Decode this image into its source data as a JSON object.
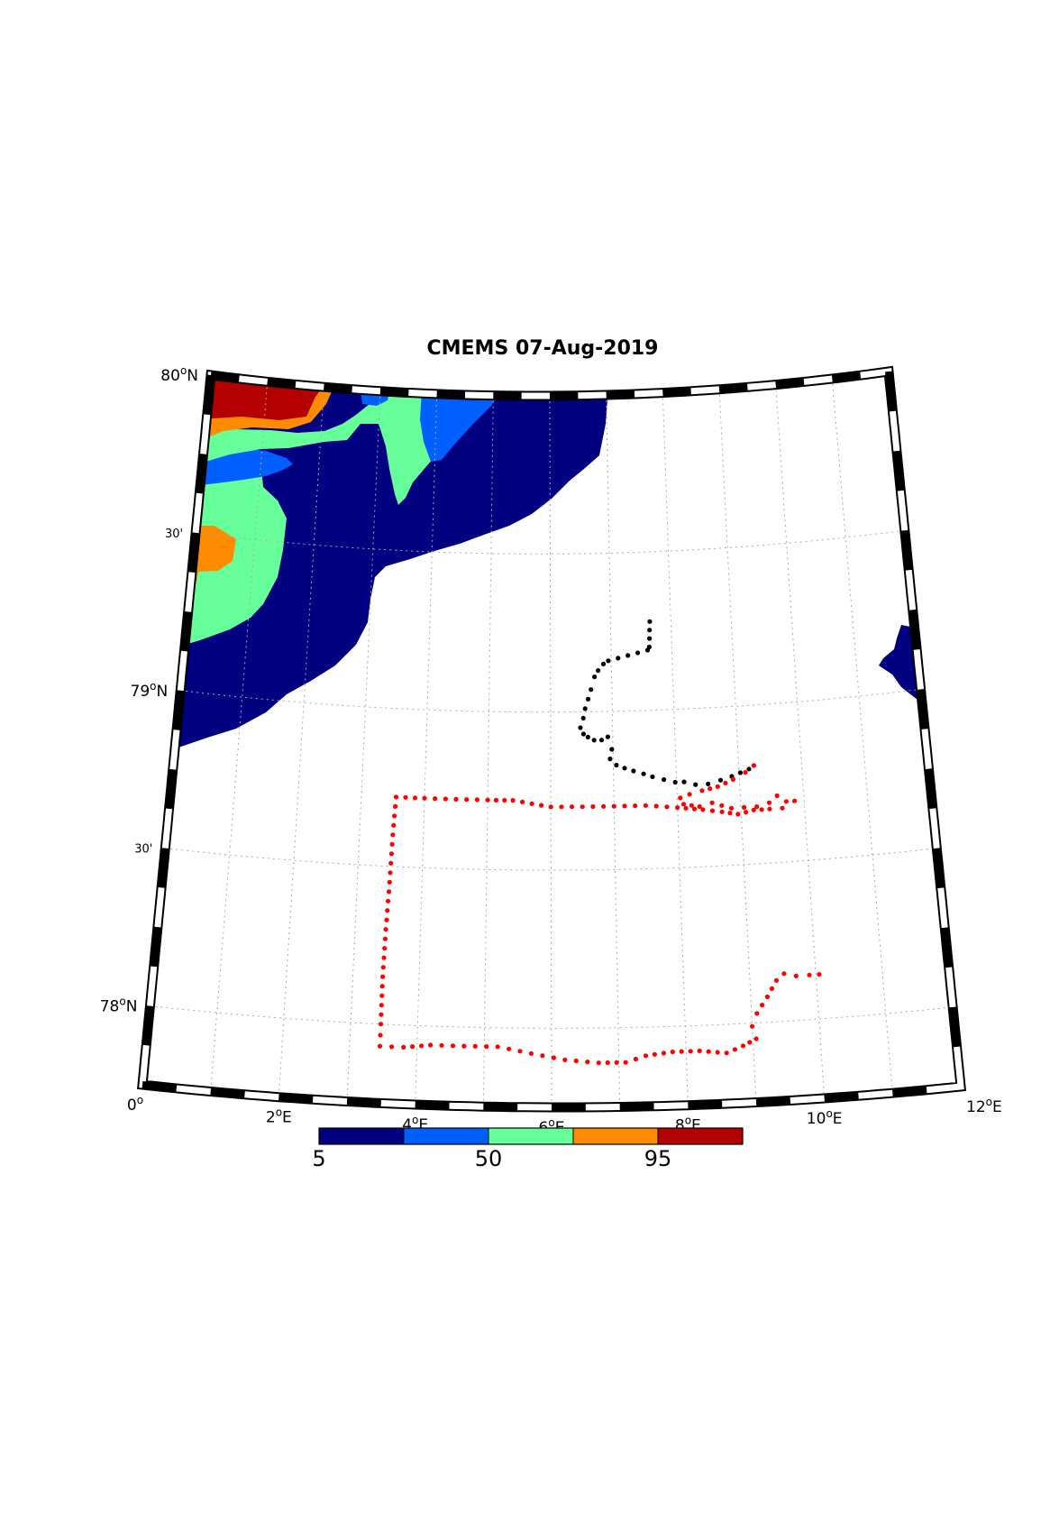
{
  "title": "CMEMS 07-Aug-2019",
  "map": {
    "lon_range": [
      0,
      12
    ],
    "lat_range": [
      77.75,
      80
    ],
    "lat_labels": [
      {
        "lat": 80,
        "text": "80",
        "sup": "o",
        "suffix": "N"
      },
      {
        "lat": 79.5,
        "text": "30'",
        "sup": "",
        "suffix": ""
      },
      {
        "lat": 79,
        "text": "79",
        "sup": "o",
        "suffix": "N"
      },
      {
        "lat": 78.5,
        "text": "30'",
        "sup": "",
        "suffix": ""
      },
      {
        "lat": 78,
        "text": "78",
        "sup": "o",
        "suffix": "N"
      }
    ],
    "lon_labels": [
      {
        "lon": 0,
        "text": "0",
        "sup": "o",
        "suffix": ""
      },
      {
        "lon": 2,
        "text": "2",
        "sup": "o",
        "suffix": "E"
      },
      {
        "lon": 4,
        "text": "4",
        "sup": "o",
        "suffix": "E"
      },
      {
        "lon": 6,
        "text": "6",
        "sup": "o",
        "suffix": "E"
      },
      {
        "lon": 8,
        "text": "8",
        "sup": "o",
        "suffix": "E"
      },
      {
        "lon": 10,
        "text": "10",
        "sup": "o",
        "suffix": "E"
      },
      {
        "lon": 12,
        "text": "12",
        "sup": "o",
        "suffix": "E"
      }
    ],
    "black_track_color": "#000000",
    "red_track_color": "#ff0000",
    "black_track": [
      [
        7.65,
        79.28
      ],
      [
        7.63,
        79.2
      ],
      [
        7.6,
        79.19
      ],
      [
        6.95,
        79.16
      ],
      [
        6.87,
        79.15
      ],
      [
        6.78,
        79.13
      ],
      [
        6.72,
        79.11
      ],
      [
        6.66,
        79.07
      ],
      [
        6.61,
        79.04
      ],
      [
        6.56,
        79.01
      ],
      [
        6.53,
        78.98
      ],
      [
        6.48,
        78.95
      ],
      [
        6.53,
        78.93
      ],
      [
        6.6,
        78.92
      ],
      [
        6.7,
        78.91
      ],
      [
        6.82,
        78.91
      ],
      [
        6.92,
        78.92
      ],
      [
        6.98,
        78.88
      ],
      [
        6.95,
        78.85
      ],
      [
        7.05,
        78.83
      ],
      [
        7.18,
        78.82
      ],
      [
        7.32,
        78.81
      ],
      [
        7.48,
        78.8
      ],
      [
        7.62,
        78.79
      ],
      [
        7.8,
        78.78
      ],
      [
        7.98,
        78.77
      ],
      [
        8.12,
        78.77
      ],
      [
        8.3,
        78.76
      ],
      [
        8.5,
        78.76
      ],
      [
        8.7,
        78.77
      ],
      [
        8.88,
        78.78
      ],
      [
        9.02,
        78.79
      ],
      [
        9.16,
        78.8
      ],
      [
        9.24,
        78.81
      ]
    ],
    "red_track": [
      [
        9.24,
        78.81
      ],
      [
        9.1,
        78.79
      ],
      [
        8.9,
        78.77
      ],
      [
        8.65,
        78.75
      ],
      [
        8.4,
        78.74
      ],
      [
        8.2,
        78.73
      ],
      [
        8.05,
        78.72
      ],
      [
        8.1,
        78.7
      ],
      [
        8.35,
        78.69
      ],
      [
        8.55,
        78.7
      ],
      [
        8.7,
        78.69
      ],
      [
        8.85,
        78.68
      ],
      [
        9.05,
        78.68
      ],
      [
        9.25,
        78.68
      ],
      [
        9.45,
        78.69
      ],
      [
        9.58,
        78.71
      ],
      [
        9.72,
        78.69
      ],
      [
        9.85,
        78.69
      ],
      [
        9.65,
        78.67
      ],
      [
        9.45,
        78.67
      ],
      [
        9.2,
        78.67
      ],
      [
        8.95,
        78.66
      ],
      [
        8.7,
        78.67
      ],
      [
        8.4,
        78.68
      ],
      [
        8.0,
        78.69
      ],
      [
        7.5,
        78.7
      ],
      [
        7.0,
        78.7
      ],
      [
        6.5,
        78.7
      ],
      [
        6.0,
        78.7
      ],
      [
        5.4,
        78.72
      ],
      [
        5.0,
        78.72
      ],
      [
        4.5,
        78.72
      ],
      [
        4.0,
        78.72
      ],
      [
        3.55,
        78.72
      ],
      [
        3.52,
        78.6
      ],
      [
        3.5,
        78.45
      ],
      [
        3.47,
        78.3
      ],
      [
        3.45,
        78.15
      ],
      [
        3.45,
        78.0
      ],
      [
        3.45,
        77.93
      ],
      [
        3.8,
        77.93
      ],
      [
        4.2,
        77.94
      ],
      [
        4.7,
        77.94
      ],
      [
        5.2,
        77.94
      ],
      [
        5.7,
        77.92
      ],
      [
        6.2,
        77.9
      ],
      [
        6.7,
        77.89
      ],
      [
        7.1,
        77.89
      ],
      [
        7.4,
        77.91
      ],
      [
        7.8,
        77.92
      ],
      [
        8.2,
        77.92
      ],
      [
        8.6,
        77.91
      ],
      [
        8.85,
        77.93
      ],
      [
        9.05,
        77.95
      ],
      [
        9.0,
        77.99
      ],
      [
        9.08,
        78.03
      ],
      [
        9.25,
        78.08
      ],
      [
        9.4,
        78.13
      ],
      [
        9.52,
        78.15
      ],
      [
        9.7,
        78.14
      ],
      [
        9.9,
        78.14
      ],
      [
        10.05,
        78.14
      ]
    ]
  },
  "colorbar": {
    "colors": [
      "#000080",
      "#0060ff",
      "#66ff99",
      "#ff8c00",
      "#b40000"
    ],
    "tick_labels": [
      "5",
      "50",
      "95"
    ]
  }
}
